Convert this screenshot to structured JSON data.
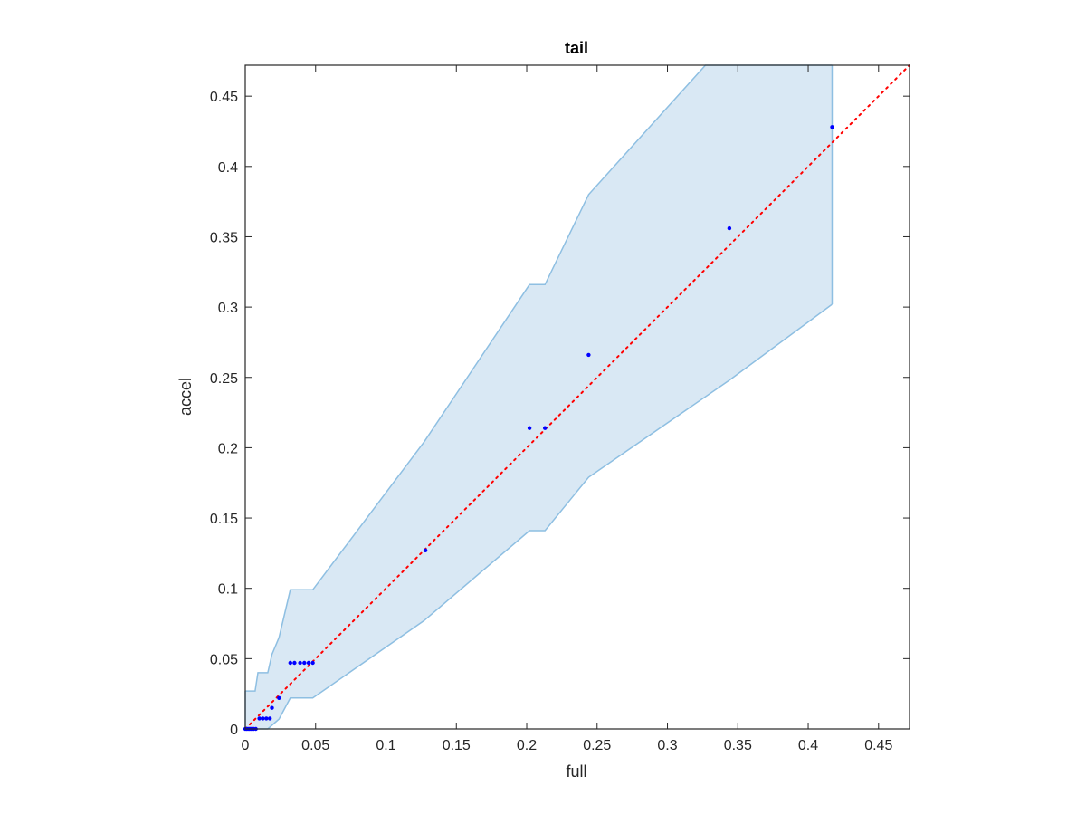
{
  "chart_data": {
    "type": "scatter",
    "title": "tail",
    "xlabel": "full",
    "ylabel": "accel",
    "xlim": [
      0,
      0.472
    ],
    "ylim": [
      0,
      0.472
    ],
    "xticks": [
      0,
      0.05,
      0.1,
      0.15,
      0.2,
      0.25,
      0.3,
      0.35,
      0.4,
      0.45
    ],
    "xtick_labels": [
      "0",
      "0.05",
      "0.1",
      "0.15",
      "0.2",
      "0.25",
      "0.3",
      "0.35",
      "0.4",
      "0.45"
    ],
    "yticks": [
      0,
      0.05,
      0.1,
      0.15,
      0.2,
      0.25,
      0.3,
      0.35,
      0.4,
      0.45
    ],
    "ytick_labels": [
      "0",
      "0.05",
      "0.1",
      "0.15",
      "0.2",
      "0.25",
      "0.3",
      "0.35",
      "0.4",
      "0.45"
    ],
    "grid": false,
    "colors": {
      "points": "#0000ff",
      "reference_line": "#ff0000",
      "band_fill": "#d9e8f4",
      "band_edge": "#8ebfe2",
      "axes": "#262626"
    },
    "points": [
      {
        "x": 0.0,
        "y": 0.0
      },
      {
        "x": 0.001,
        "y": 0.0
      },
      {
        "x": 0.002,
        "y": 0.0
      },
      {
        "x": 0.003,
        "y": 0.0
      },
      {
        "x": 0.004,
        "y": 0.0
      },
      {
        "x": 0.005,
        "y": 0.0
      },
      {
        "x": 0.006,
        "y": 0.0
      },
      {
        "x": 0.0075,
        "y": 0.0
      },
      {
        "x": 0.01,
        "y": 0.0075
      },
      {
        "x": 0.0125,
        "y": 0.0075
      },
      {
        "x": 0.015,
        "y": 0.0075
      },
      {
        "x": 0.0175,
        "y": 0.0075
      },
      {
        "x": 0.019,
        "y": 0.015
      },
      {
        "x": 0.024,
        "y": 0.022
      },
      {
        "x": 0.032,
        "y": 0.047
      },
      {
        "x": 0.035,
        "y": 0.047
      },
      {
        "x": 0.039,
        "y": 0.047
      },
      {
        "x": 0.042,
        "y": 0.047
      },
      {
        "x": 0.045,
        "y": 0.047
      },
      {
        "x": 0.048,
        "y": 0.047
      },
      {
        "x": 0.128,
        "y": 0.127
      },
      {
        "x": 0.202,
        "y": 0.214
      },
      {
        "x": 0.213,
        "y": 0.214
      },
      {
        "x": 0.244,
        "y": 0.266
      },
      {
        "x": 0.344,
        "y": 0.356
      },
      {
        "x": 0.417,
        "y": 0.428
      }
    ],
    "reference_line": {
      "style": "dotted",
      "from": [
        0,
        0
      ],
      "to": [
        0.472,
        0.472
      ]
    },
    "band_upper": [
      [
        0,
        0.027
      ],
      [
        0.007,
        0.027
      ],
      [
        0.009,
        0.04
      ],
      [
        0.016,
        0.04
      ],
      [
        0.019,
        0.053
      ],
      [
        0.024,
        0.065
      ],
      [
        0.032,
        0.099
      ],
      [
        0.048,
        0.099
      ],
      [
        0.127,
        0.204
      ],
      [
        0.202,
        0.316
      ],
      [
        0.213,
        0.316
      ],
      [
        0.244,
        0.38
      ],
      [
        0.327,
        0.472
      ],
      [
        0.417,
        0.472
      ]
    ],
    "band_lower": [
      [
        0,
        0.0
      ],
      [
        0.016,
        0.0
      ],
      [
        0.024,
        0.007
      ],
      [
        0.032,
        0.022
      ],
      [
        0.048,
        0.022
      ],
      [
        0.127,
        0.077
      ],
      [
        0.202,
        0.141
      ],
      [
        0.213,
        0.141
      ],
      [
        0.244,
        0.179
      ],
      [
        0.344,
        0.248
      ],
      [
        0.417,
        0.302
      ]
    ]
  }
}
